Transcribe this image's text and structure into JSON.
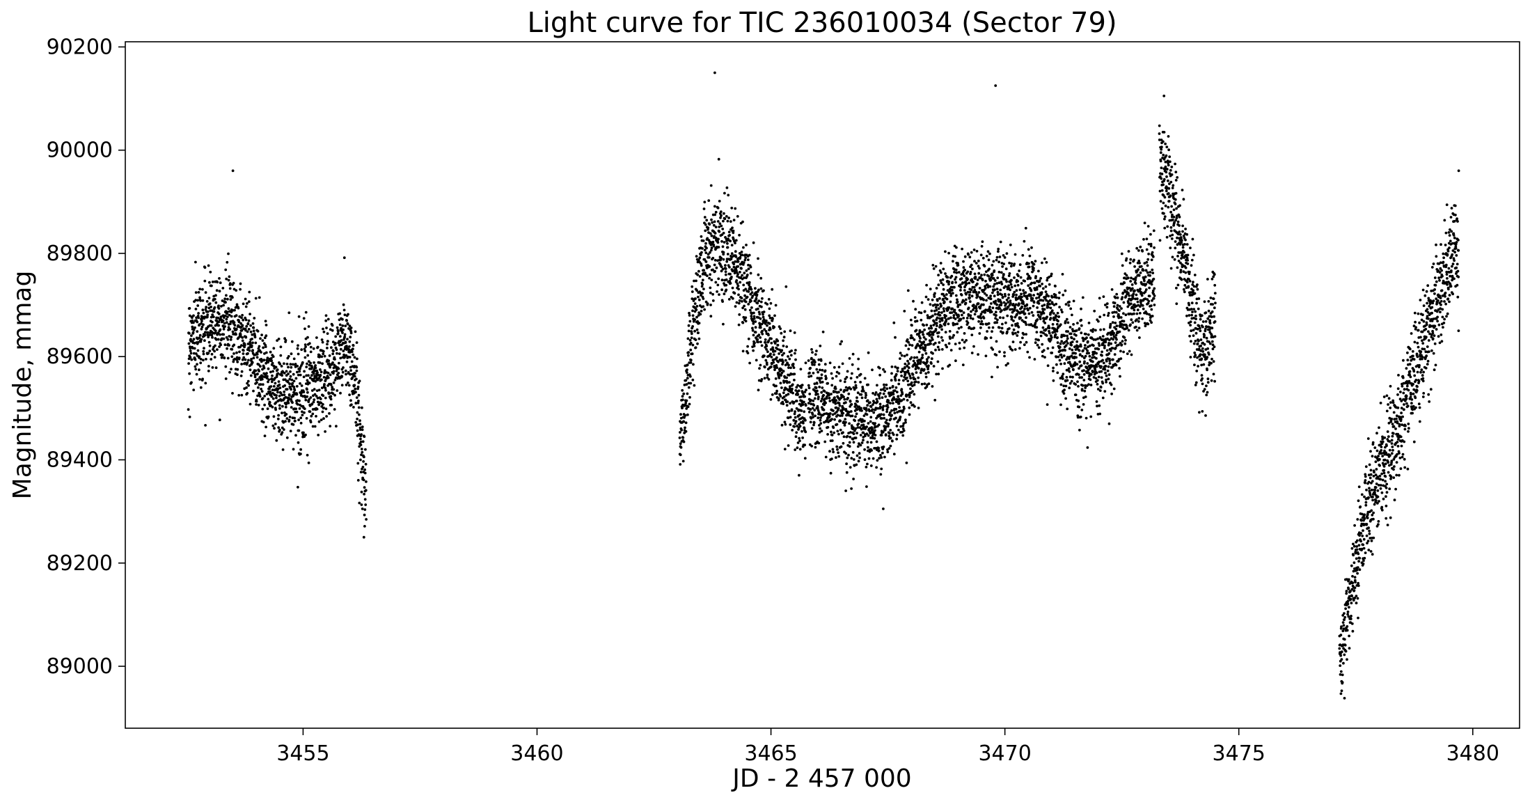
{
  "chart_data": {
    "type": "scatter",
    "title": "Light curve for TIC 236010034 (Sector 79)",
    "xlabel": "JD - 2 457 000",
    "ylabel": "Magnitude, mmag",
    "xlim": [
      3451.2,
      3481.0
    ],
    "ylim": [
      88880,
      90210
    ],
    "xticks": [
      3455,
      3460,
      3465,
      3470,
      3475,
      3480
    ],
    "yticks": [
      89000,
      89200,
      89400,
      89600,
      89800,
      90000,
      90200
    ],
    "grid": false,
    "marker_color": "#000000",
    "y_axis_inverted": false,
    "trend": {
      "x": [
        3452.6,
        3452.9,
        3453.2,
        3453.6,
        3454.0,
        3454.4,
        3454.8,
        3455.2,
        3455.6,
        3455.9,
        3456.1,
        3456.3,
        3463.1,
        3463.3,
        3463.6,
        3463.9,
        3464.2,
        3464.6,
        3465.0,
        3465.4,
        3465.7,
        3465.8,
        3466.3,
        3466.8,
        3467.3,
        3467.8,
        3468.3,
        3468.7,
        3469.2,
        3469.7,
        3470.2,
        3470.6,
        3471.0,
        3471.4,
        3471.8,
        3472.2,
        3472.6,
        3473.0,
        3473.2,
        3473.3,
        3473.5,
        3473.8,
        3474.1,
        3474.3,
        3474.4,
        3474.5,
        3477.2,
        3477.4,
        3477.7,
        3478.0,
        3478.4,
        3478.8,
        3479.2,
        3479.6
      ],
      "y": [
        89630,
        89660,
        89680,
        89650,
        89590,
        89540,
        89530,
        89540,
        89570,
        89630,
        89560,
        89380,
        89450,
        89640,
        89800,
        89830,
        89780,
        89700,
        89620,
        89540,
        89470,
        89530,
        89500,
        89480,
        89470,
        89530,
        89620,
        89700,
        89720,
        89710,
        89700,
        89710,
        89660,
        89600,
        89580,
        89620,
        89690,
        89730,
        89760,
        89970,
        89920,
        89800,
        89640,
        89600,
        89660,
        89680,
        89020,
        89150,
        89290,
        89380,
        89460,
        89580,
        89700,
        89800
      ],
      "segments": [
        [
          3452.55,
          3456.35
        ],
        [
          3463.05,
          3465.75
        ],
        [
          3465.8,
          3473.2
        ],
        [
          3473.3,
          3474.5
        ],
        [
          3477.15,
          3479.7
        ]
      ],
      "scatter_sd": 48
    },
    "outliers": {
      "x": [
        3453.5,
        3463.8,
        3469.8,
        3473.4,
        3456.3,
        3465.6,
        3466.6,
        3467.4,
        3479.7
      ],
      "y": [
        89960,
        90150,
        90125,
        90105,
        89250,
        89370,
        89340,
        89305,
        89960
      ]
    }
  }
}
